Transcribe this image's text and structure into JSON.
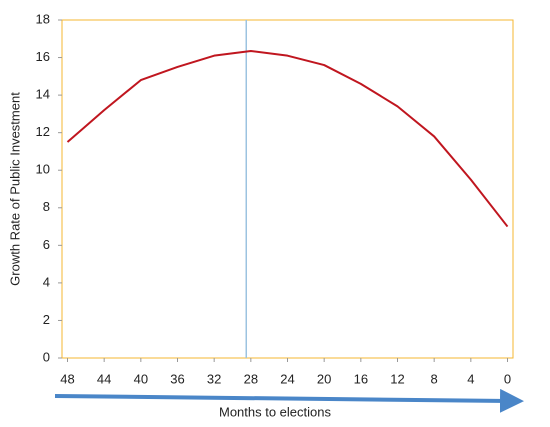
{
  "chart_data": {
    "type": "line",
    "y_label": "Growth Rate of Public Investment",
    "x_label": "Months to elections",
    "x": [
      48,
      44,
      40,
      36,
      32,
      28,
      24,
      20,
      16,
      12,
      8,
      4,
      0
    ],
    "series": [
      {
        "color": "#c0161f",
        "values": [
          11.5,
          13.2,
          14.8,
          15.5,
          16.1,
          16.35,
          16.1,
          15.6,
          14.6,
          13.4,
          11.8,
          9.5,
          7.0
        ]
      }
    ],
    "xlim": [
      48.6,
      -0.6
    ],
    "xticks": [
      48,
      44,
      40,
      36,
      32,
      28,
      24,
      20,
      16,
      12,
      8,
      4,
      0
    ],
    "ylim": [
      0,
      18
    ],
    "yticks": [
      0,
      2,
      4,
      6,
      8,
      10,
      12,
      14,
      16,
      18
    ],
    "vline": 28.5,
    "vline_color": "#9cc3e0",
    "frame_color": "#f5b731",
    "arrow_color": "#4a86c8"
  }
}
